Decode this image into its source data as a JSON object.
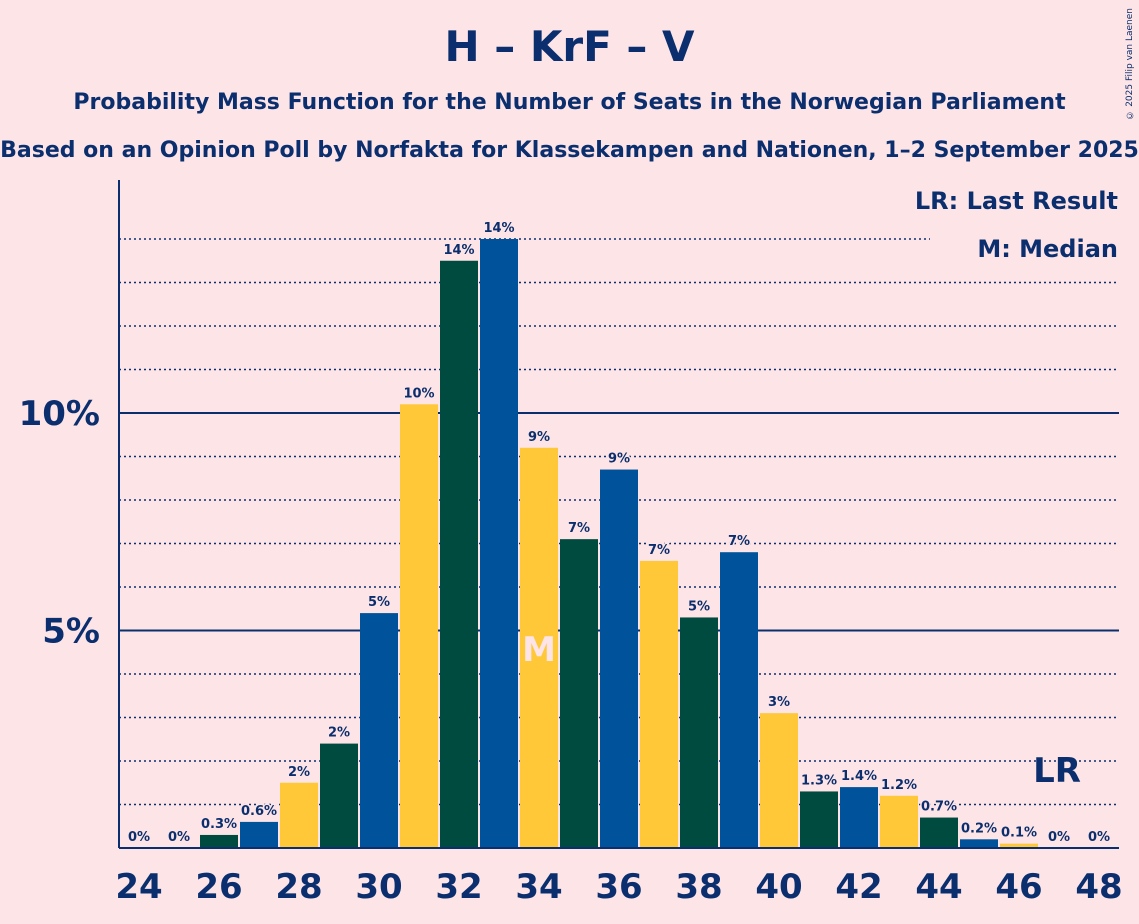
{
  "header": {
    "title": "H – KrF – V",
    "subtitle": "Probability Mass Function for the Number of Seats in the Norwegian Parliament",
    "source": "Based on an Opinion Poll by Norfakta for Klassekampen and Nationen, 1–2 September 2025",
    "copyright": "© 2025 Filip van Laenen"
  },
  "colors": {
    "green": "#004b3f",
    "blue": "#00539a",
    "yellow": "#ffc839",
    "text": "#0b2f6e",
    "background": "#fde4e6"
  },
  "chart_data": {
    "type": "bar",
    "title": "H – KrF – V",
    "xlabel": "",
    "ylabel": "",
    "x": [
      24,
      25,
      26,
      27,
      28,
      29,
      30,
      31,
      32,
      33,
      34,
      35,
      36,
      37,
      38,
      39,
      40,
      41,
      42,
      43,
      44,
      45,
      46,
      47,
      48
    ],
    "values": [
      0,
      0,
      0.3,
      0.6,
      1.5,
      2.4,
      5.4,
      10.2,
      13.5,
      14.0,
      9.2,
      7.1,
      8.7,
      6.6,
      5.3,
      6.8,
      3.1,
      1.3,
      1.4,
      1.2,
      0.7,
      0.2,
      0.1,
      0,
      0
    ],
    "labels": [
      "0%",
      "0%",
      "0.3%",
      "0.6%",
      "2%",
      "2%",
      "5%",
      "10%",
      "14%",
      "14%",
      "9%",
      "7%",
      "9%",
      "7%",
      "5%",
      "7%",
      "3%",
      "1.3%",
      "1.4%",
      "1.2%",
      "0.7%",
      "0.2%",
      "0.1%",
      "0%",
      "0%"
    ],
    "color_keys": [
      "yellow",
      "green",
      "green",
      "blue",
      "yellow",
      "green",
      "blue",
      "yellow",
      "green",
      "blue",
      "yellow",
      "green",
      "blue",
      "yellow",
      "green",
      "blue",
      "yellow",
      "green",
      "blue",
      "yellow",
      "green",
      "blue",
      "yellow",
      "green",
      "blue"
    ],
    "x_tick_labels": [
      "24",
      "26",
      "28",
      "30",
      "32",
      "34",
      "36",
      "38",
      "40",
      "42",
      "44",
      "46",
      "48"
    ],
    "y_ticks": [
      {
        "value": 5,
        "label": "5%"
      },
      {
        "value": 10,
        "label": "10%"
      }
    ],
    "ylim": [
      0,
      15
    ],
    "median": {
      "x": 34,
      "label": "M"
    },
    "last_result": {
      "x": 47,
      "label": "LR"
    },
    "legend": [
      "LR: Last Result",
      "M: Median"
    ],
    "legend_position": "top-right",
    "grid": "dotted every 1%"
  }
}
